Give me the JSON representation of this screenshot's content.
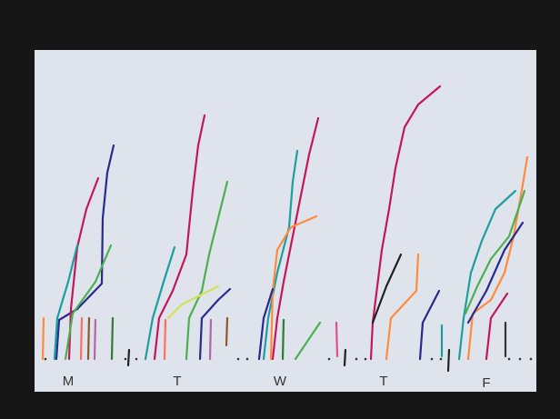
{
  "labels": [
    "M",
    "T",
    "W",
    "T",
    "F"
  ]
}
